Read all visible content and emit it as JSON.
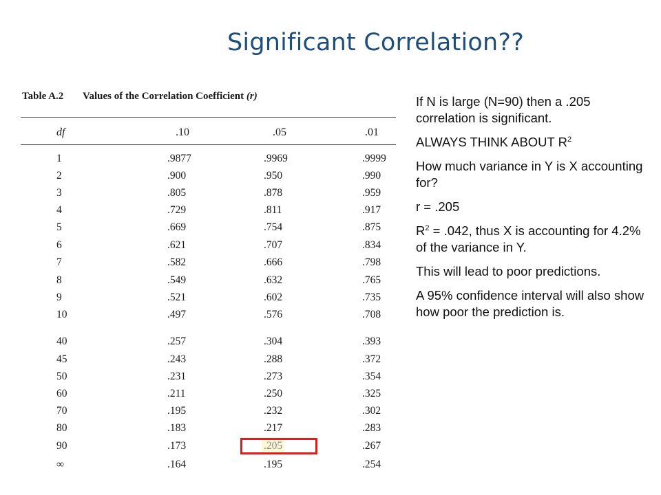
{
  "slide": {
    "title": "Significant Correlation??"
  },
  "table": {
    "caption_label": "Table A.2",
    "caption_title": "Values of the Correlation Coefficient",
    "caption_symbol": "(r)",
    "columns": [
      "df",
      ".10",
      ".05",
      ".01"
    ],
    "rows": [
      [
        "1",
        ".9877",
        ".9969",
        ".9999"
      ],
      [
        "2",
        ".900",
        ".950",
        ".990"
      ],
      [
        "3",
        ".805",
        ".878",
        ".959"
      ],
      [
        "4",
        ".729",
        ".811",
        ".917"
      ],
      [
        "5",
        ".669",
        ".754",
        ".875"
      ],
      [
        "6",
        ".621",
        ".707",
        ".834"
      ],
      [
        "7",
        ".582",
        ".666",
        ".798"
      ],
      [
        "8",
        ".549",
        ".632",
        ".765"
      ],
      [
        "9",
        ".521",
        ".602",
        ".735"
      ],
      [
        "10",
        ".497",
        ".576",
        ".708"
      ],
      [
        "40",
        ".257",
        ".304",
        ".393"
      ],
      [
        "45",
        ".243",
        ".288",
        ".372"
      ],
      [
        "50",
        ".231",
        ".273",
        ".354"
      ],
      [
        "60",
        ".211",
        ".250",
        ".325"
      ],
      [
        "70",
        ".195",
        ".232",
        ".302"
      ],
      [
        "80",
        ".183",
        ".217",
        ".283"
      ],
      [
        "90",
        ".173",
        ".205",
        ".267"
      ],
      [
        "∞",
        ".164",
        ".195",
        ".254"
      ]
    ],
    "highlight_color": "#e01b1b"
  },
  "notes": {
    "p1": "If N is large (N=90) then a .205 correlation is significant.",
    "p2_text": "ALWAYS THINK ABOUT R",
    "p2_sup": "2",
    "p3": "How much variance in Y is X accounting for?",
    "p4": "r = .205",
    "p5_pre": "R",
    "p5_sup": "2",
    "p5_post": " = .042, thus X is accounting for 4.2% of the variance in Y.",
    "p6": "This will lead to poor predictions.",
    "p7": "A 95% confidence interval will also show how poor the prediction is."
  },
  "colors": {
    "title": "#1f4e79",
    "highlight_fill": "#fbf8d6"
  }
}
